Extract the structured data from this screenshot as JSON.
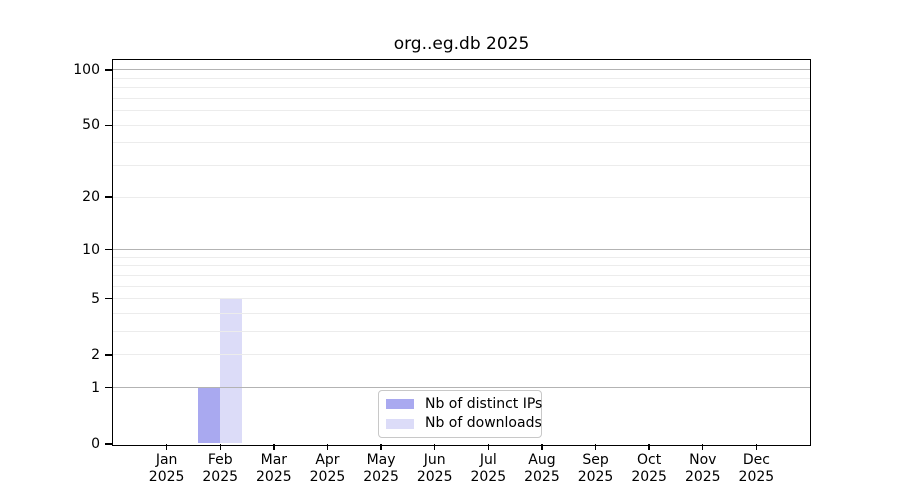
{
  "title": "org..eg.db 2025",
  "chart_data": {
    "type": "bar",
    "title": "org..eg.db 2025",
    "categories": [
      "Jan",
      "Feb",
      "Mar",
      "Apr",
      "May",
      "Jun",
      "Jul",
      "Aug",
      "Sep",
      "Oct",
      "Nov",
      "Dec"
    ],
    "year": "2025",
    "series": [
      {
        "name": "Nb of distinct IPs",
        "key": "distinct-ips",
        "color": "#a9a9f0",
        "values": [
          0,
          1,
          0,
          0,
          0,
          0,
          0,
          0,
          0,
          0,
          0,
          0
        ]
      },
      {
        "name": "Nb of downloads",
        "key": "downloads",
        "color": "#dcdcf8",
        "values": [
          0,
          5,
          0,
          0,
          0,
          0,
          0,
          0,
          0,
          0,
          0,
          0
        ]
      }
    ],
    "xlabel": "",
    "ylabel": "",
    "yscale": "log1p",
    "ylim": [
      0,
      113
    ],
    "yticks": [
      0,
      1,
      2,
      5,
      10,
      20,
      50,
      100
    ],
    "minor_gridlines": [
      2,
      3,
      4,
      5,
      6,
      7,
      8,
      9,
      20,
      30,
      40,
      50,
      60,
      70,
      80,
      90
    ],
    "major_gridlines": [
      1,
      10,
      100
    ],
    "grid": "on",
    "legend_position": "bottom-center",
    "colors": {
      "major_grid": "#b3b3b3",
      "minor_grid": "#ececec",
      "axis": "#000000",
      "background": "#ffffff"
    }
  }
}
